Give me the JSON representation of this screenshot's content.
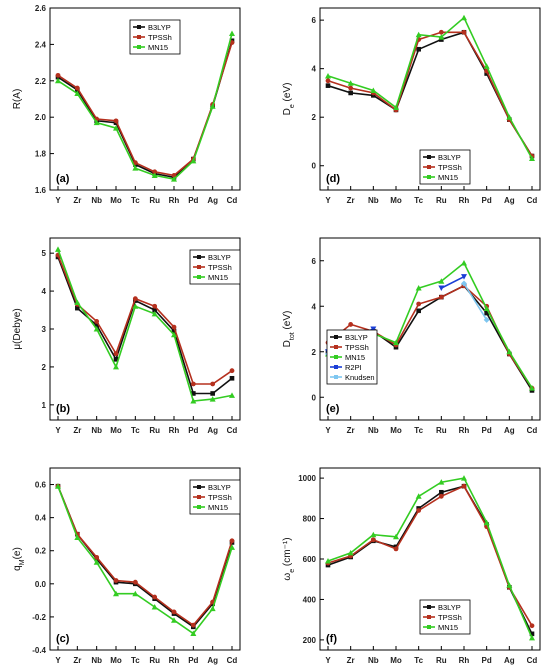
{
  "elements": [
    "Y",
    "Zr",
    "Nb",
    "Mo",
    "Tc",
    "Ru",
    "Rh",
    "Pd",
    "Ag",
    "Cd"
  ],
  "colors": {
    "B3LYP": "#111111",
    "TPSSh": "#b5301e",
    "MN15": "#33cc22",
    "R2PI": "#1a3ed6",
    "Knudsen": "#7ec6f0"
  },
  "chart_data": [
    {
      "id": "a",
      "panel_label": "(a)",
      "type": "line",
      "ylabel": "R(A)",
      "ylabel_sub": "",
      "ylim": [
        1.6,
        2.6
      ],
      "yticks": [
        1.6,
        1.8,
        2.0,
        2.2,
        2.4,
        2.6
      ],
      "ytick_labels": [
        "1.6",
        "1.8",
        "2.0",
        "2.2",
        "2.4",
        "2.6"
      ],
      "legend_position": "top-right",
      "series": [
        {
          "name": "B3LYP",
          "values": [
            2.22,
            2.15,
            1.98,
            1.97,
            1.74,
            1.69,
            1.67,
            1.77,
            2.06,
            2.42
          ]
        },
        {
          "name": "TPSSh",
          "values": [
            2.23,
            2.16,
            1.99,
            1.98,
            1.75,
            1.7,
            1.68,
            1.77,
            2.07,
            2.41
          ]
        },
        {
          "name": "MN15",
          "values": [
            2.2,
            2.13,
            1.97,
            1.94,
            1.72,
            1.68,
            1.66,
            1.76,
            2.06,
            2.46
          ]
        }
      ]
    },
    {
      "id": "d",
      "panel_label": "(d)",
      "type": "line",
      "ylabel": "D",
      "ylabel_sub": "e",
      "ylabel_rest": " (eV)",
      "ylim": [
        -1,
        6.5
      ],
      "yticks": [
        0,
        2,
        4,
        6
      ],
      "ytick_labels": [
        "0",
        "2",
        "4",
        "6"
      ],
      "legend_position": "bottom-right",
      "series": [
        {
          "name": "B3LYP",
          "values": [
            3.3,
            3.0,
            2.9,
            2.3,
            4.8,
            5.2,
            5.5,
            3.8,
            1.9,
            0.4
          ]
        },
        {
          "name": "TPSSh",
          "values": [
            3.5,
            3.2,
            3.0,
            2.3,
            5.2,
            5.5,
            5.5,
            3.9,
            1.9,
            0.4
          ]
        },
        {
          "name": "MN15",
          "values": [
            3.7,
            3.4,
            3.1,
            2.4,
            5.4,
            5.3,
            6.1,
            4.1,
            2.0,
            0.3
          ]
        }
      ]
    },
    {
      "id": "b",
      "panel_label": "(b)",
      "type": "line",
      "ylabel": "μ(Debye)",
      "ylabel_sub": "",
      "ylim": [
        0.6,
        5.4
      ],
      "yticks": [
        1,
        2,
        3,
        4,
        5
      ],
      "ytick_labels": [
        "1",
        "2",
        "3",
        "4",
        "5"
      ],
      "legend_position": "top-right",
      "series": [
        {
          "name": "B3LYP",
          "values": [
            4.9,
            3.55,
            3.1,
            2.2,
            3.75,
            3.5,
            2.95,
            1.3,
            1.3,
            1.7
          ]
        },
        {
          "name": "TPSSh",
          "values": [
            4.95,
            3.65,
            3.2,
            2.35,
            3.8,
            3.6,
            3.05,
            1.55,
            1.55,
            1.9
          ]
        },
        {
          "name": "MN15",
          "values": [
            5.1,
            3.7,
            3.0,
            2.0,
            3.6,
            3.4,
            2.85,
            1.1,
            1.15,
            1.25
          ]
        }
      ]
    },
    {
      "id": "e",
      "panel_label": "(e)",
      "type": "line",
      "ylabel": "D",
      "ylabel_sub": "tot",
      "ylabel_rest": " (eV)",
      "ylim": [
        -1,
        7
      ],
      "yticks": [
        0,
        2,
        4,
        6
      ],
      "ytick_labels": [
        "0",
        "2",
        "4",
        "6"
      ],
      "legend_position": "bottom-left",
      "series": [
        {
          "name": "B3LYP",
          "values": [
            2.0,
            2.7,
            2.9,
            2.2,
            3.8,
            4.4,
            4.9,
            3.7,
            1.9,
            0.3
          ]
        },
        {
          "name": "TPSSh",
          "values": [
            2.4,
            3.2,
            2.9,
            2.3,
            4.1,
            4.4,
            4.9,
            4.0,
            1.9,
            0.4
          ]
        },
        {
          "name": "MN15",
          "values": [
            1.9,
            2.6,
            2.8,
            2.4,
            4.8,
            5.1,
            5.9,
            3.9,
            2.0,
            0.4
          ]
        },
        {
          "name": "R2PI",
          "values": [
            2.0,
            2.6,
            3.0,
            null,
            null,
            4.8,
            5.3,
            null,
            null,
            null
          ]
        },
        {
          "name": "Knudsen",
          "values": [
            1.9,
            null,
            null,
            null,
            null,
            null,
            5.0,
            3.4,
            null,
            null
          ]
        }
      ]
    },
    {
      "id": "c",
      "panel_label": "(c)",
      "type": "line",
      "ylabel": "q",
      "ylabel_sub": "M",
      "ylabel_rest": "(e)",
      "ylim": [
        -0.4,
        0.7
      ],
      "yticks": [
        -0.4,
        -0.2,
        0.0,
        0.2,
        0.4,
        0.6
      ],
      "ytick_labels": [
        "-0.4",
        "-0.2",
        "0.0",
        "0.2",
        "0.4",
        "0.6"
      ],
      "legend_position": "top-right",
      "series": [
        {
          "name": "B3LYP",
          "values": [
            0.59,
            0.3,
            0.15,
            0.01,
            0.0,
            -0.09,
            -0.18,
            -0.26,
            -0.12,
            0.25
          ]
        },
        {
          "name": "TPSSh",
          "values": [
            0.59,
            0.3,
            0.16,
            0.02,
            0.01,
            -0.08,
            -0.17,
            -0.25,
            -0.11,
            0.26
          ]
        },
        {
          "name": "MN15",
          "values": [
            0.59,
            0.28,
            0.13,
            -0.06,
            -0.06,
            -0.14,
            -0.22,
            -0.3,
            -0.15,
            0.22
          ]
        }
      ]
    },
    {
      "id": "f",
      "panel_label": "(f)",
      "type": "line",
      "ylabel": "ω",
      "ylabel_sub": "e",
      "ylabel_rest": " (cm⁻¹)",
      "ylim": [
        150,
        1050
      ],
      "yticks": [
        200,
        400,
        600,
        800,
        1000
      ],
      "ytick_labels": [
        "200",
        "400",
        "600",
        "800",
        "1000"
      ],
      "legend_position": "bottom-right",
      "series": [
        {
          "name": "B3LYP",
          "values": [
            570,
            610,
            690,
            660,
            850,
            930,
            960,
            770,
            460,
            230
          ]
        },
        {
          "name": "TPSSh",
          "values": [
            580,
            615,
            695,
            650,
            840,
            910,
            960,
            760,
            460,
            270
          ]
        },
        {
          "name": "MN15",
          "values": [
            590,
            630,
            720,
            710,
            910,
            980,
            1000,
            780,
            470,
            210
          ]
        }
      ]
    }
  ]
}
